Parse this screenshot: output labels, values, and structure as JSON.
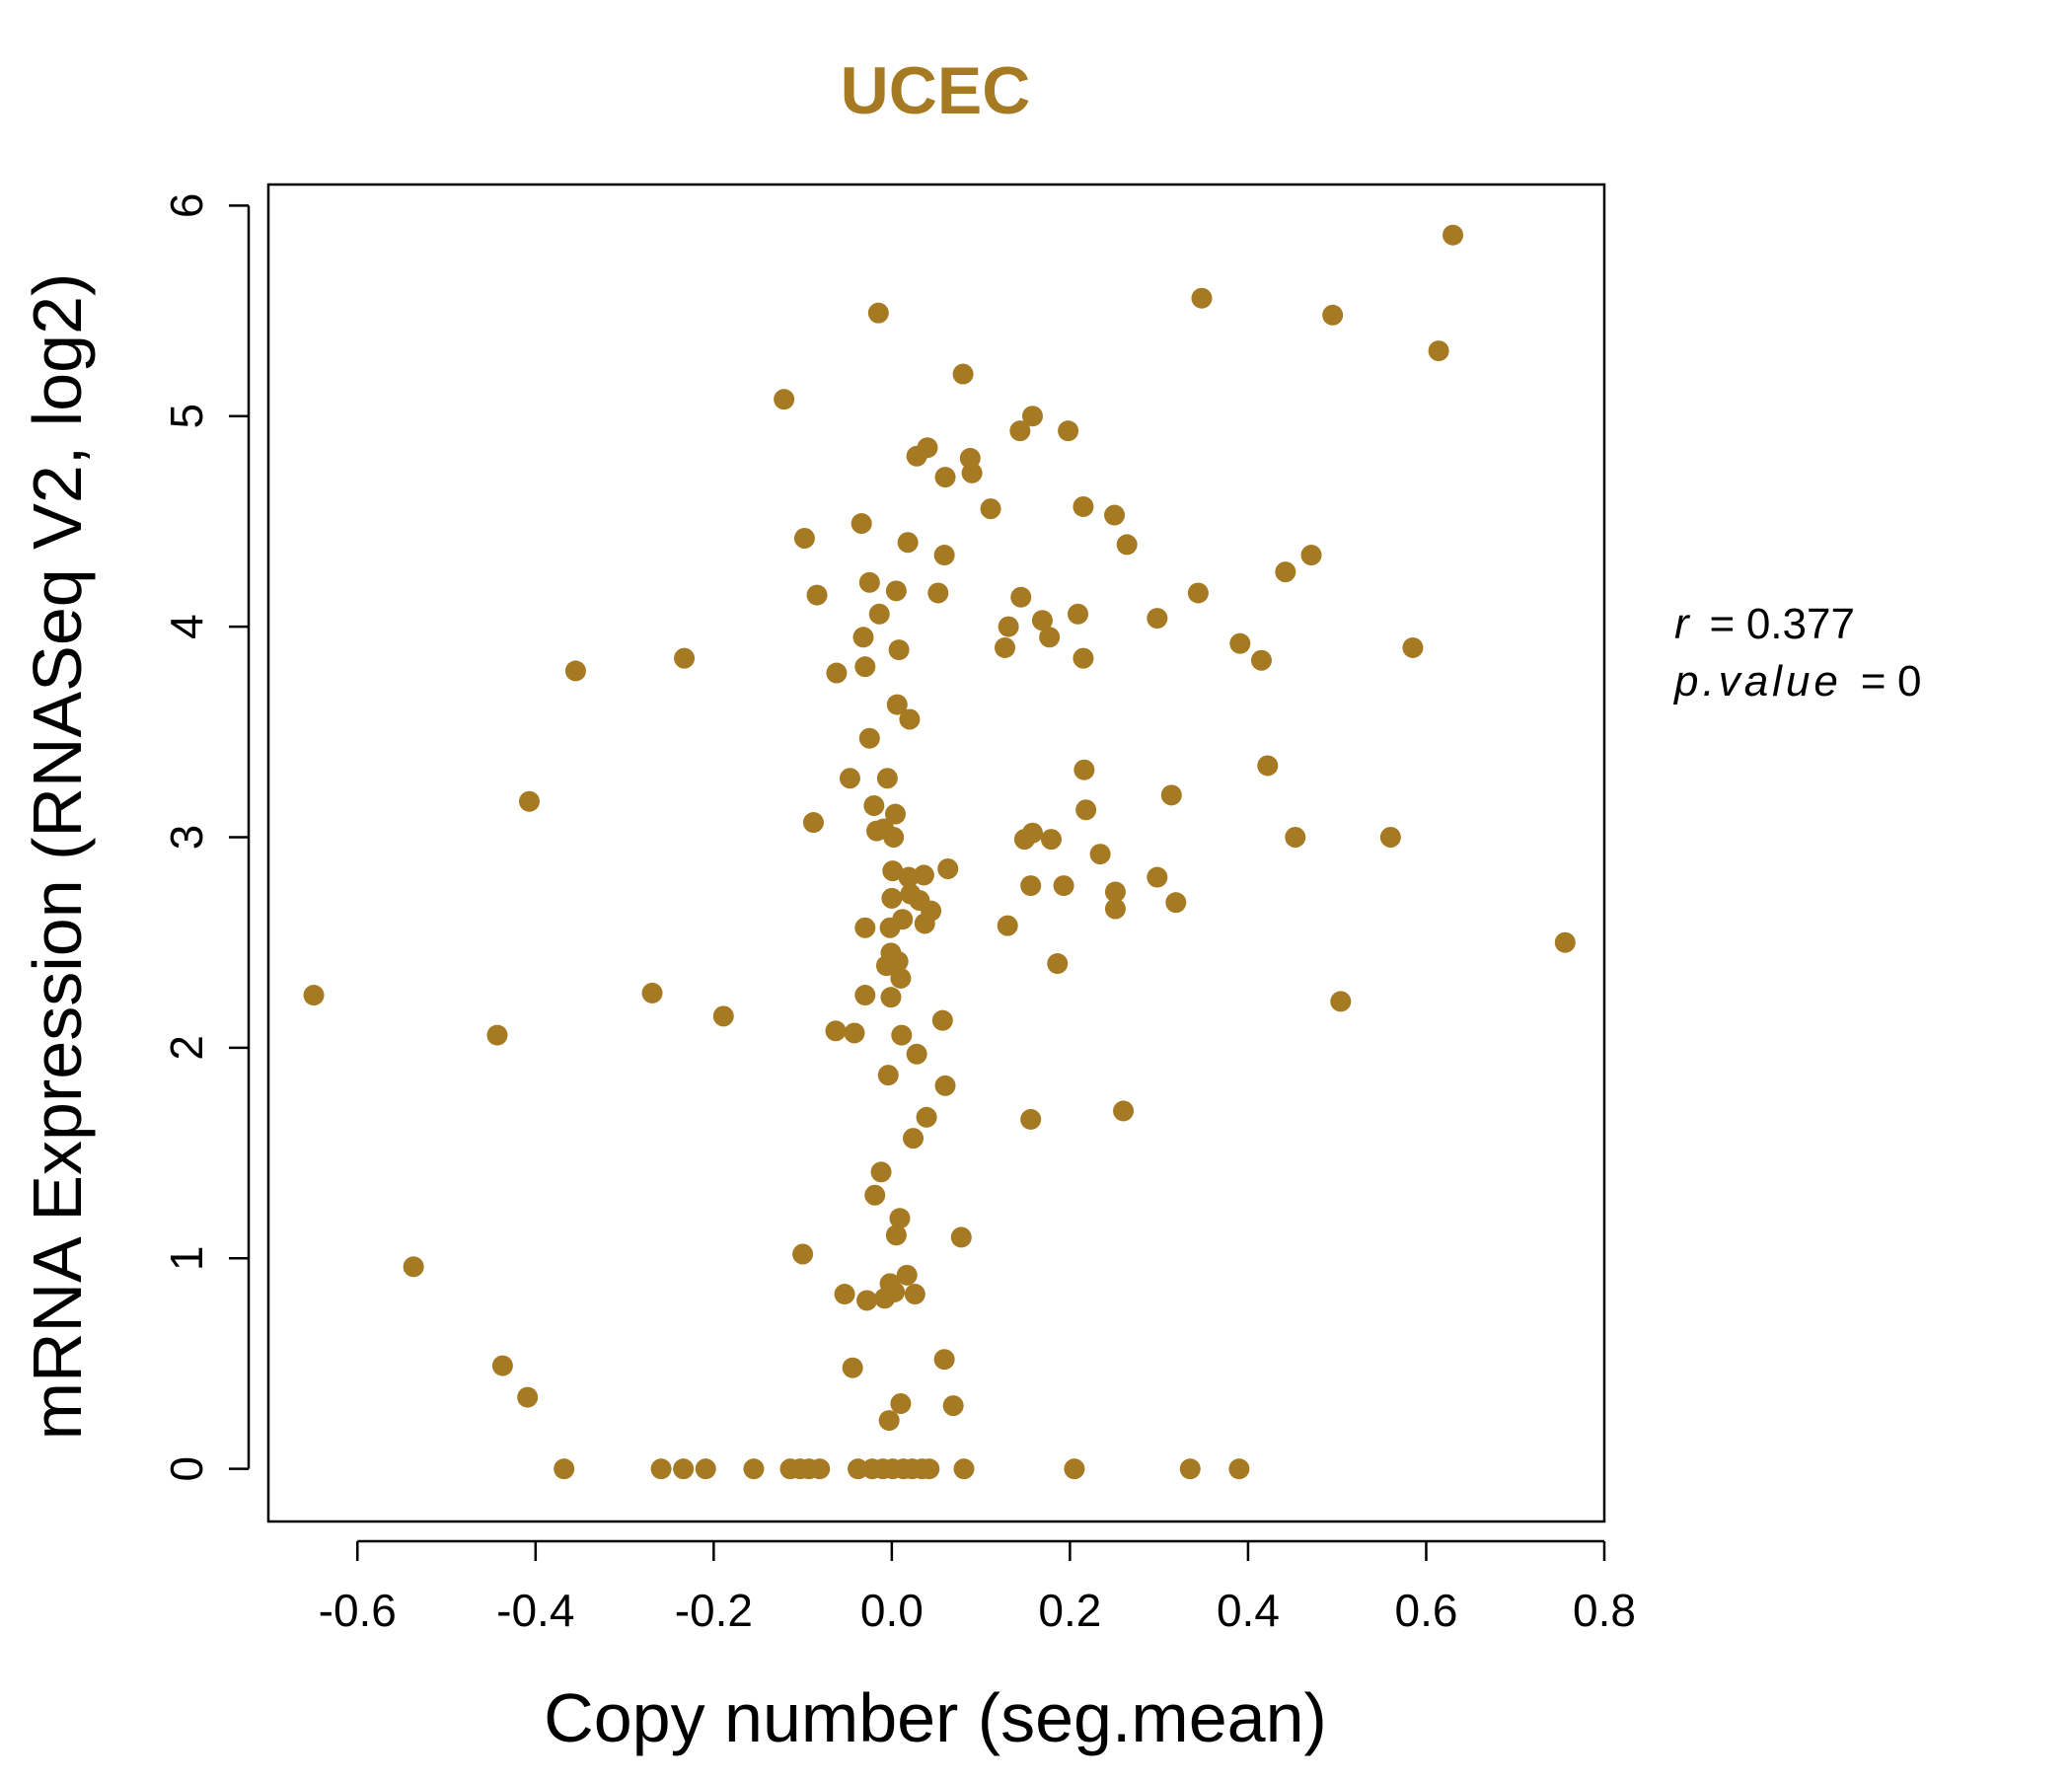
{
  "chart_data": {
    "type": "scatter",
    "title": "UCEC",
    "xlabel": "Copy number (seg.mean)",
    "ylabel": "mRNA Expression (RNASeq V2, log2)",
    "xlim": [
      -0.7,
      0.8
    ],
    "ylim": [
      -0.25,
      6.1
    ],
    "x_ticks": [
      -0.6,
      -0.4,
      -0.2,
      0.0,
      0.2,
      0.4,
      0.6,
      0.8
    ],
    "x_tick_labels": [
      "-0.6",
      "-0.4",
      "-0.2",
      "0.0",
      "0.2",
      "0.4",
      "0.6",
      "0.8"
    ],
    "y_ticks": [
      0,
      1,
      2,
      3,
      4,
      5,
      6
    ],
    "y_tick_labels": [
      "0",
      "1",
      "2",
      "3",
      "4",
      "5",
      "6"
    ],
    "grid": false,
    "point_color": "#A57A22",
    "stats": {
      "r_label": "r",
      "r_value": "0.377",
      "p_label": "p.value",
      "p_value": "0"
    },
    "points": [
      {
        "x": -0.649,
        "y": 2.25
      },
      {
        "x": -0.537,
        "y": 0.96
      },
      {
        "x": -0.443,
        "y": 2.06
      },
      {
        "x": -0.437,
        "y": 0.49
      },
      {
        "x": -0.407,
        "y": 3.17
      },
      {
        "x": -0.409,
        "y": 0.34
      },
      {
        "x": -0.368,
        "y": 0.0
      },
      {
        "x": -0.355,
        "y": 3.79
      },
      {
        "x": -0.269,
        "y": 2.26
      },
      {
        "x": -0.259,
        "y": 0.0
      },
      {
        "x": -0.233,
        "y": 3.85
      },
      {
        "x": -0.234,
        "y": 0.0
      },
      {
        "x": -0.209,
        "y": 0.0
      },
      {
        "x": -0.189,
        "y": 2.15
      },
      {
        "x": -0.155,
        "y": 0.0
      },
      {
        "x": -0.121,
        "y": 5.08
      },
      {
        "x": -0.114,
        "y": 0.0
      },
      {
        "x": -0.103,
        "y": 0.0
      },
      {
        "x": -0.1,
        "y": 1.02
      },
      {
        "x": -0.098,
        "y": 4.42
      },
      {
        "x": -0.093,
        "y": 0.0
      },
      {
        "x": -0.088,
        "y": 3.07
      },
      {
        "x": -0.084,
        "y": 4.15
      },
      {
        "x": -0.081,
        "y": 0.0
      },
      {
        "x": -0.062,
        "y": 3.78
      },
      {
        "x": -0.063,
        "y": 2.08
      },
      {
        "x": -0.053,
        "y": 0.83
      },
      {
        "x": -0.047,
        "y": 3.28
      },
      {
        "x": -0.044,
        "y": 0.48
      },
      {
        "x": -0.042,
        "y": 2.07
      },
      {
        "x": -0.038,
        "y": 0.0
      },
      {
        "x": -0.034,
        "y": 4.49
      },
      {
        "x": -0.032,
        "y": 3.95
      },
      {
        "x": -0.03,
        "y": 2.57
      },
      {
        "x": -0.03,
        "y": 2.25
      },
      {
        "x": -0.03,
        "y": 3.81
      },
      {
        "x": -0.028,
        "y": 0.8
      },
      {
        "x": -0.025,
        "y": 4.21
      },
      {
        "x": -0.025,
        "y": 3.47
      },
      {
        "x": -0.022,
        "y": 0.0
      },
      {
        "x": -0.02,
        "y": 3.15
      },
      {
        "x": -0.019,
        "y": 1.3
      },
      {
        "x": -0.017,
        "y": 3.03
      },
      {
        "x": -0.015,
        "y": 5.49
      },
      {
        "x": -0.014,
        "y": 4.06
      },
      {
        "x": -0.012,
        "y": 1.41
      },
      {
        "x": -0.01,
        "y": 0.0
      },
      {
        "x": -0.009,
        "y": 3.04
      },
      {
        "x": -0.008,
        "y": 0.81
      },
      {
        "x": -0.006,
        "y": 2.39
      },
      {
        "x": -0.005,
        "y": 3.28
      },
      {
        "x": -0.004,
        "y": 1.87
      },
      {
        "x": -0.003,
        "y": 0.23
      },
      {
        "x": -0.002,
        "y": 2.57
      },
      {
        "x": -0.002,
        "y": 0.88
      },
      {
        "x": -0.001,
        "y": 2.45
      },
      {
        "x": -0.001,
        "y": 2.24
      },
      {
        "x": 0.0,
        "y": 2.71
      },
      {
        "x": 0.001,
        "y": 0.0
      },
      {
        "x": 0.001,
        "y": 2.84
      },
      {
        "x": 0.002,
        "y": 3.0
      },
      {
        "x": 0.003,
        "y": 0.84
      },
      {
        "x": 0.004,
        "y": 3.11
      },
      {
        "x": 0.005,
        "y": 4.17
      },
      {
        "x": 0.005,
        "y": 1.11
      },
      {
        "x": 0.006,
        "y": 3.63
      },
      {
        "x": 0.007,
        "y": 2.41
      },
      {
        "x": 0.008,
        "y": 3.89
      },
      {
        "x": 0.009,
        "y": 1.19
      },
      {
        "x": 0.01,
        "y": 2.33
      },
      {
        "x": 0.01,
        "y": 0.31
      },
      {
        "x": 0.011,
        "y": 2.06
      },
      {
        "x": 0.012,
        "y": 2.61
      },
      {
        "x": 0.013,
        "y": 0.0
      },
      {
        "x": 0.017,
        "y": 0.92
      },
      {
        "x": 0.018,
        "y": 4.4
      },
      {
        "x": 0.019,
        "y": 2.81
      },
      {
        "x": 0.02,
        "y": 3.56
      },
      {
        "x": 0.021,
        "y": 2.73
      },
      {
        "x": 0.023,
        "y": 0.0
      },
      {
        "x": 0.024,
        "y": 1.57
      },
      {
        "x": 0.026,
        "y": 0.83
      },
      {
        "x": 0.028,
        "y": 1.97
      },
      {
        "x": 0.028,
        "y": 4.81
      },
      {
        "x": 0.031,
        "y": 2.7
      },
      {
        "x": 0.034,
        "y": 0.0
      },
      {
        "x": 0.036,
        "y": 2.82
      },
      {
        "x": 0.037,
        "y": 2.59
      },
      {
        "x": 0.039,
        "y": 1.67
      },
      {
        "x": 0.04,
        "y": 4.85
      },
      {
        "x": 0.042,
        "y": 0.0
      },
      {
        "x": 0.044,
        "y": 2.65
      },
      {
        "x": 0.052,
        "y": 4.16
      },
      {
        "x": 0.057,
        "y": 2.13
      },
      {
        "x": 0.059,
        "y": 4.34
      },
      {
        "x": 0.059,
        "y": 0.52
      },
      {
        "x": 0.06,
        "y": 4.71
      },
      {
        "x": 0.06,
        "y": 1.82
      },
      {
        "x": 0.063,
        "y": 2.85
      },
      {
        "x": 0.069,
        "y": 0.3
      },
      {
        "x": 0.078,
        "y": 1.1
      },
      {
        "x": 0.08,
        "y": 5.2
      },
      {
        "x": 0.081,
        "y": 0.0
      },
      {
        "x": 0.088,
        "y": 4.8
      },
      {
        "x": 0.09,
        "y": 4.73
      },
      {
        "x": 0.111,
        "y": 4.56
      },
      {
        "x": 0.127,
        "y": 3.9
      },
      {
        "x": 0.13,
        "y": 2.58
      },
      {
        "x": 0.131,
        "y": 4.0
      },
      {
        "x": 0.144,
        "y": 4.93
      },
      {
        "x": 0.145,
        "y": 4.14
      },
      {
        "x": 0.149,
        "y": 2.99
      },
      {
        "x": 0.156,
        "y": 2.77
      },
      {
        "x": 0.156,
        "y": 1.66
      },
      {
        "x": 0.158,
        "y": 5.0
      },
      {
        "x": 0.158,
        "y": 3.02
      },
      {
        "x": 0.169,
        "y": 4.03
      },
      {
        "x": 0.177,
        "y": 3.95
      },
      {
        "x": 0.179,
        "y": 2.99
      },
      {
        "x": 0.186,
        "y": 2.4
      },
      {
        "x": 0.193,
        "y": 2.77
      },
      {
        "x": 0.198,
        "y": 4.93
      },
      {
        "x": 0.205,
        "y": 0.0
      },
      {
        "x": 0.209,
        "y": 4.06
      },
      {
        "x": 0.215,
        "y": 4.57
      },
      {
        "x": 0.215,
        "y": 3.85
      },
      {
        "x": 0.216,
        "y": 3.32
      },
      {
        "x": 0.218,
        "y": 3.13
      },
      {
        "x": 0.234,
        "y": 2.92
      },
      {
        "x": 0.25,
        "y": 4.53
      },
      {
        "x": 0.251,
        "y": 2.74
      },
      {
        "x": 0.251,
        "y": 2.66
      },
      {
        "x": 0.26,
        "y": 1.7
      },
      {
        "x": 0.264,
        "y": 4.39
      },
      {
        "x": 0.298,
        "y": 4.04
      },
      {
        "x": 0.298,
        "y": 2.81
      },
      {
        "x": 0.314,
        "y": 3.2
      },
      {
        "x": 0.319,
        "y": 2.69
      },
      {
        "x": 0.335,
        "y": 0.0
      },
      {
        "x": 0.344,
        "y": 4.16
      },
      {
        "x": 0.348,
        "y": 5.56
      },
      {
        "x": 0.39,
        "y": 0.0
      },
      {
        "x": 0.391,
        "y": 3.92
      },
      {
        "x": 0.415,
        "y": 3.84
      },
      {
        "x": 0.422,
        "y": 3.34
      },
      {
        "x": 0.442,
        "y": 4.26
      },
      {
        "x": 0.453,
        "y": 3.0
      },
      {
        "x": 0.471,
        "y": 4.34
      },
      {
        "x": 0.495,
        "y": 5.48
      },
      {
        "x": 0.504,
        "y": 2.22
      },
      {
        "x": 0.56,
        "y": 3.0
      },
      {
        "x": 0.585,
        "y": 3.9
      },
      {
        "x": 0.614,
        "y": 5.31
      },
      {
        "x": 0.63,
        "y": 5.86
      },
      {
        "x": 0.756,
        "y": 2.5
      }
    ]
  }
}
